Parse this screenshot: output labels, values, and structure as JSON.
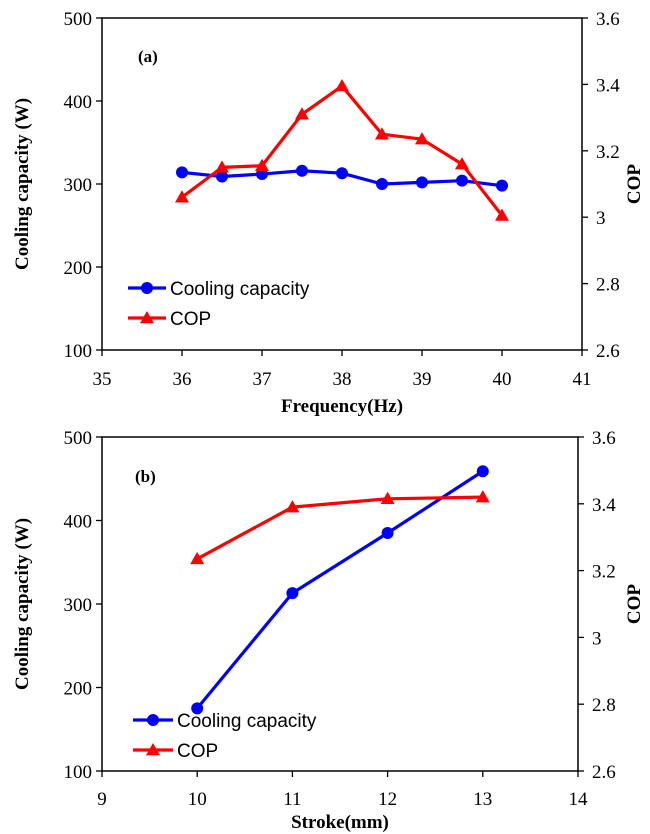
{
  "chart_data": [
    {
      "type": "line",
      "panel_label": "(a)",
      "xlabel": "Frequency(Hz)",
      "ylabel": "Cooling capacity (W)",
      "y2label": "COP",
      "xlim": [
        35,
        41
      ],
      "xticks": [
        "35",
        "36",
        "37",
        "38",
        "39",
        "40",
        "41"
      ],
      "ylim": [
        100,
        500
      ],
      "yticks": [
        "100",
        "200",
        "300",
        "400",
        "500"
      ],
      "y2lim": [
        2.6,
        3.6
      ],
      "y2ticks": [
        "2.6",
        "2.8",
        "3",
        "3.2",
        "3.4",
        "3.6"
      ],
      "grid": false,
      "legend_position": "bottom-left",
      "series": [
        {
          "name": "Cooling capacity",
          "axis": "left",
          "color": "#0000ff",
          "marker": "circle",
          "x": [
            36,
            36.5,
            37,
            37.5,
            38,
            38.5,
            39,
            39.5,
            40
          ],
          "values": [
            314,
            309,
            312,
            316,
            313,
            300,
            302,
            304,
            298
          ]
        },
        {
          "name": "COP",
          "axis": "right",
          "color": "#ff0000",
          "marker": "triangle",
          "x": [
            36,
            36.5,
            37,
            37.5,
            38,
            38.5,
            39,
            39.5,
            40
          ],
          "values": [
            3.06,
            3.15,
            3.155,
            3.31,
            3.395,
            3.25,
            3.235,
            3.16,
            3.005
          ]
        }
      ]
    },
    {
      "type": "line",
      "panel_label": "(b)",
      "xlabel": "Stroke(mm)",
      "ylabel": "Cooling capacity (W)",
      "y2label": "COP",
      "xlim": [
        9,
        14
      ],
      "xticks": [
        "9",
        "10",
        "11",
        "12",
        "13",
        "14"
      ],
      "ylim": [
        100,
        500
      ],
      "yticks": [
        "100",
        "200",
        "300",
        "400",
        "500"
      ],
      "y2lim": [
        2.6,
        3.6
      ],
      "y2ticks": [
        "2.6",
        "2.8",
        "3",
        "3.2",
        "3.4",
        "3.6"
      ],
      "grid": false,
      "legend_position": "bottom-left",
      "series": [
        {
          "name": "Cooling capacity",
          "axis": "left",
          "color": "#0000ff",
          "marker": "circle",
          "x": [
            10,
            11,
            12,
            13
          ],
          "values": [
            175,
            313,
            385,
            459
          ]
        },
        {
          "name": "COP",
          "axis": "right",
          "color": "#ff0000",
          "marker": "triangle",
          "x": [
            10,
            11,
            12,
            13
          ],
          "values": [
            3.235,
            3.39,
            3.415,
            3.42
          ]
        }
      ]
    }
  ]
}
